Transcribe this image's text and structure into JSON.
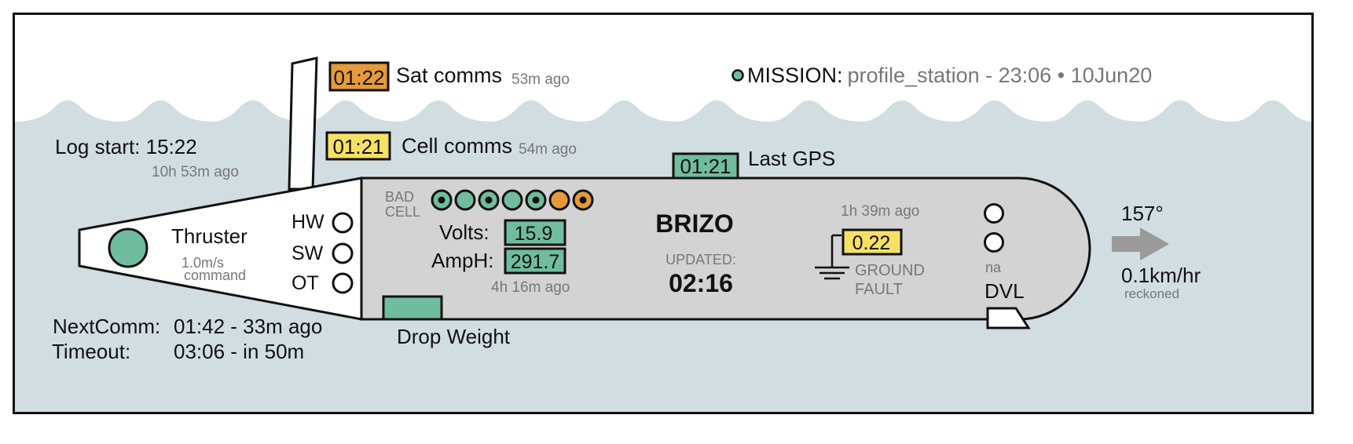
{
  "colors": {
    "water": "#d2dde1",
    "hull": "#d4d3d3",
    "green": "#6fbd9e",
    "yellow": "#f7e164",
    "orange": "#e59a3c",
    "text_dark": "#111111",
    "text_gray": "#777777",
    "arrow": "#9a9a9a"
  },
  "sat_comms": {
    "time": "01:22",
    "label": "Sat comms",
    "ago": "53m ago",
    "status": "orange"
  },
  "cell_comms": {
    "time": "01:21",
    "label": "Cell comms",
    "ago": "54m ago",
    "status": "yellow"
  },
  "last_gps": {
    "time": "01:21",
    "label": "Last GPS",
    "status": "green"
  },
  "mission": {
    "label": "MISSION:",
    "value": "profile_station - 23:06 • 10Jun20",
    "indicator": "green"
  },
  "log_start": {
    "label": "Log start: 15:22",
    "ago": "10h 53m ago"
  },
  "thruster": {
    "label": "Thruster",
    "speed": "1.0m/s",
    "mode": "command"
  },
  "switches": [
    {
      "label": "HW",
      "state": "off"
    },
    {
      "label": "SW",
      "state": "off"
    },
    {
      "label": "OT",
      "state": "off"
    }
  ],
  "bad_cell": {
    "label_line1": "BAD",
    "label_line2": "CELL",
    "cells": [
      "green-dot",
      "green",
      "green-dot",
      "green",
      "green-dot",
      "orange",
      "orange-dot"
    ]
  },
  "battery": {
    "volts_label": "Volts:",
    "volts": "15.9",
    "amph_label": "AmpH:",
    "amph": "291.7",
    "ago": "4h 16m ago"
  },
  "vehicle": {
    "name": "BRIZO",
    "updated_label": "UPDATED:",
    "updated_time": "02:16"
  },
  "ground_fault": {
    "ago": "1h 39m ago",
    "value": "0.22",
    "label_line1": "GROUND",
    "label_line2": "FAULT",
    "status": "yellow"
  },
  "dvl": {
    "label": "DVL",
    "na": "na"
  },
  "heading": {
    "degrees": "157°",
    "speed": "0.1km/hr",
    "mode": "reckoned",
    "icon": "arrow-right-icon"
  },
  "drop_weight": {
    "label": "Drop Weight"
  },
  "next_comm": {
    "label": "NextComm:",
    "value": "01:42 - 33m ago"
  },
  "timeout": {
    "label": "Timeout:",
    "value": "03:06 - in 50m"
  }
}
